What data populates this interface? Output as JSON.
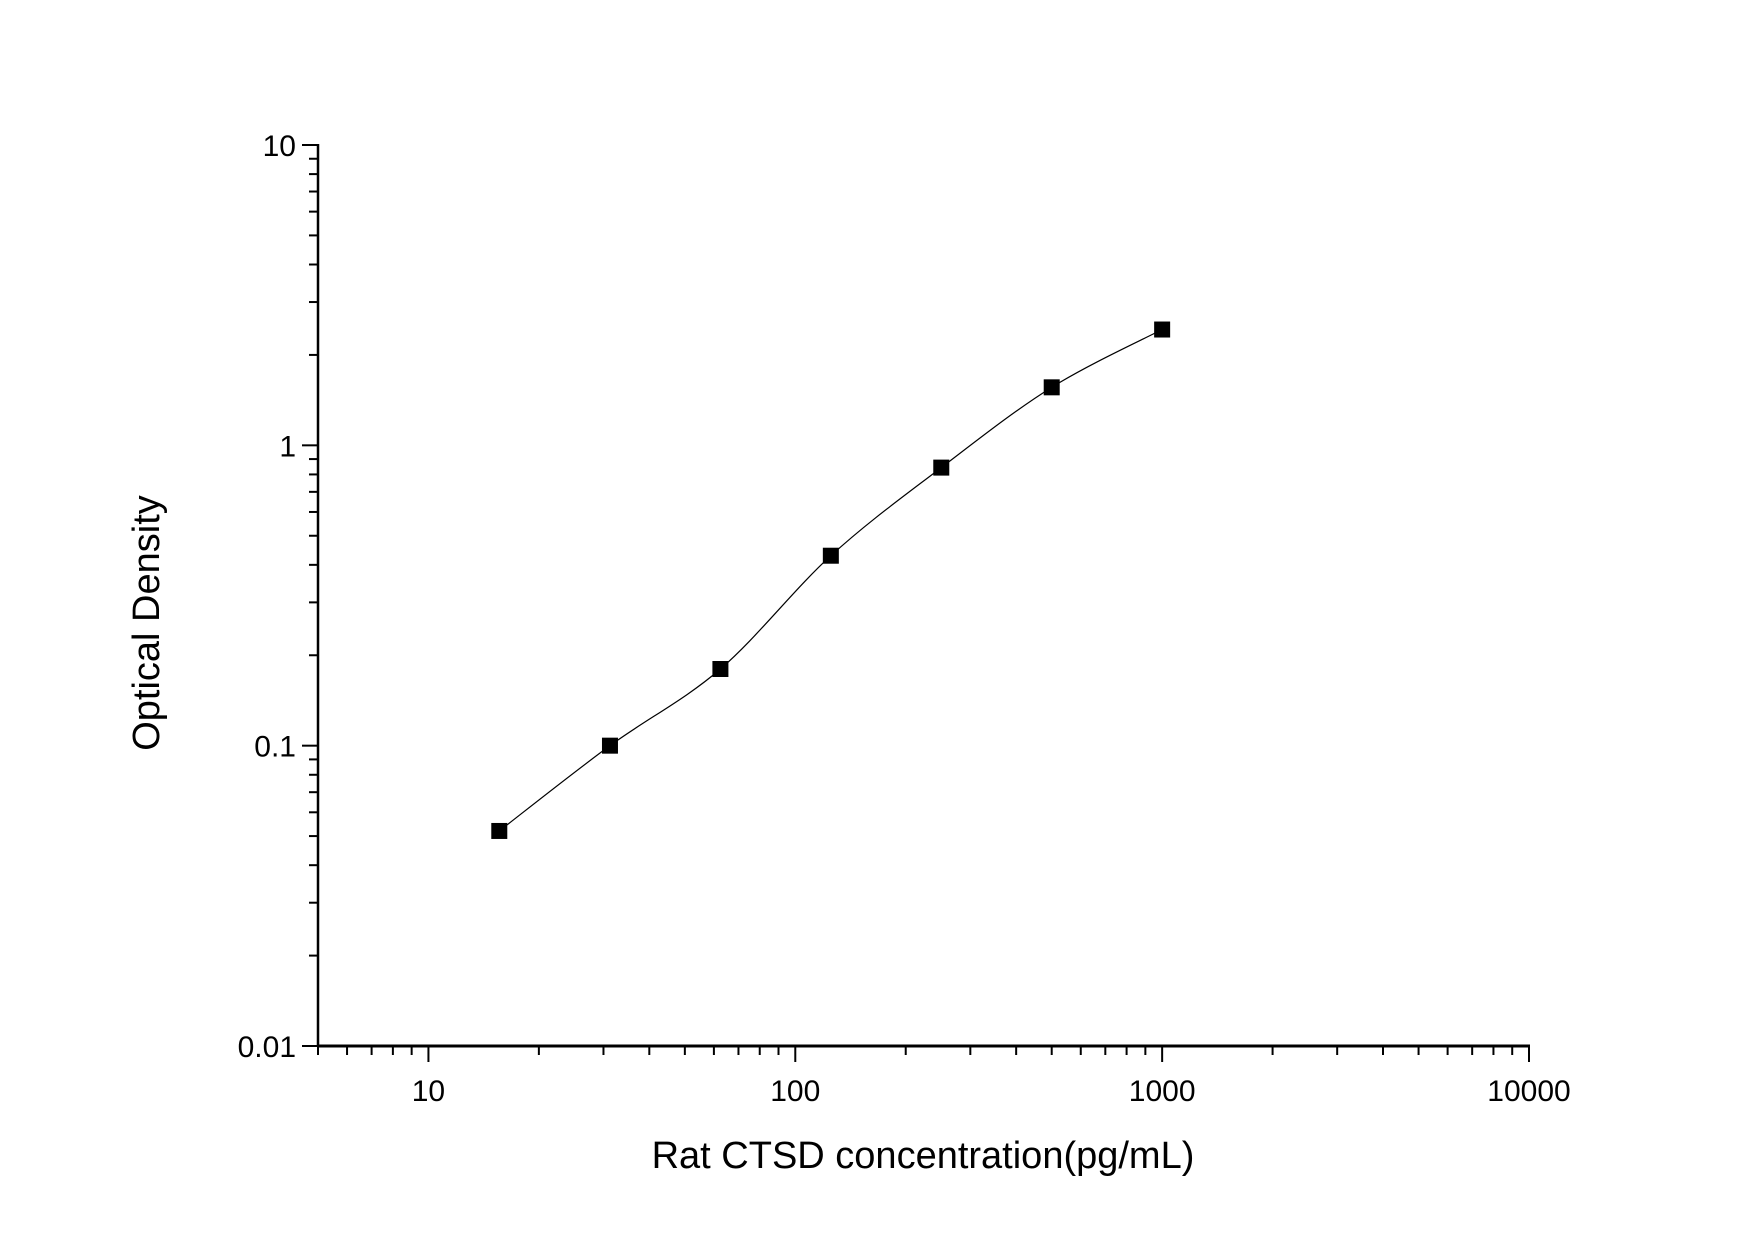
{
  "chart_data": {
    "type": "scatter",
    "title": "",
    "xlabel": "Rat CTSD concentration(pg/mL)",
    "ylabel": "Optical Density",
    "x_scale": "log",
    "y_scale": "log",
    "xlim": [
      5,
      10000
    ],
    "ylim": [
      0.01,
      10
    ],
    "x_ticks": [
      {
        "value": 10,
        "label": "10"
      },
      {
        "value": 100,
        "label": "100"
      },
      {
        "value": 1000,
        "label": "1000"
      },
      {
        "value": 10000,
        "label": "10000"
      }
    ],
    "y_ticks": [
      {
        "value": 0.01,
        "label": "0.01"
      },
      {
        "value": 0.1,
        "label": "0.1"
      },
      {
        "value": 1,
        "label": "1"
      },
      {
        "value": 10,
        "label": "10"
      }
    ],
    "grid": false,
    "marker": "square",
    "fit_curve": true,
    "colors": {
      "marker": "#000000",
      "line": "#000000"
    },
    "x": [
      15.6,
      31.25,
      62.5,
      125,
      250,
      500,
      1000
    ],
    "y": [
      0.052,
      0.1,
      0.18,
      0.429,
      0.843,
      1.56,
      2.43
    ]
  }
}
